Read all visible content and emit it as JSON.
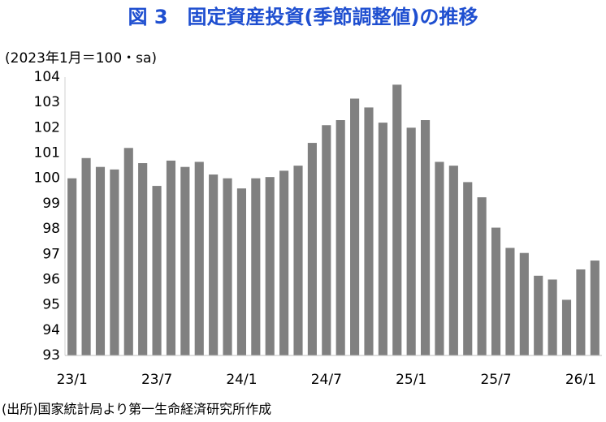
{
  "chart_data": {
    "type": "bar",
    "title": "図 3　固定資産投資(季節調整値)の推移",
    "unit_label": "(2023年1月＝100・sa)",
    "source": "(出所)国家統計局より第一生命経済研究所作成",
    "categories": [
      "23/1",
      null,
      null,
      null,
      null,
      null,
      "23/7",
      null,
      null,
      null,
      null,
      null,
      "24/1",
      null,
      null,
      null,
      null,
      null,
      "24/7",
      null,
      null,
      null,
      null,
      null,
      "25/1",
      null,
      null,
      null,
      null,
      null,
      "25/7",
      null,
      null,
      null,
      null,
      null,
      "26/1",
      null
    ],
    "values": [
      100.0,
      100.8,
      100.45,
      100.35,
      101.2,
      100.6,
      99.7,
      100.7,
      100.45,
      100.65,
      100.15,
      100.0,
      99.6,
      100.0,
      100.05,
      100.3,
      100.5,
      101.4,
      102.1,
      102.3,
      103.15,
      102.8,
      102.2,
      103.7,
      102.0,
      102.3,
      100.65,
      100.5,
      99.85,
      99.25,
      98.05,
      97.25,
      97.05,
      96.15,
      96.0,
      95.2,
      96.4,
      96.75
    ],
    "color": "#808080",
    "ylim": [
      93,
      104
    ],
    "yticks": [
      93,
      94,
      95,
      96,
      97,
      98,
      99,
      100,
      101,
      102,
      103,
      104
    ],
    "grid": false
  }
}
